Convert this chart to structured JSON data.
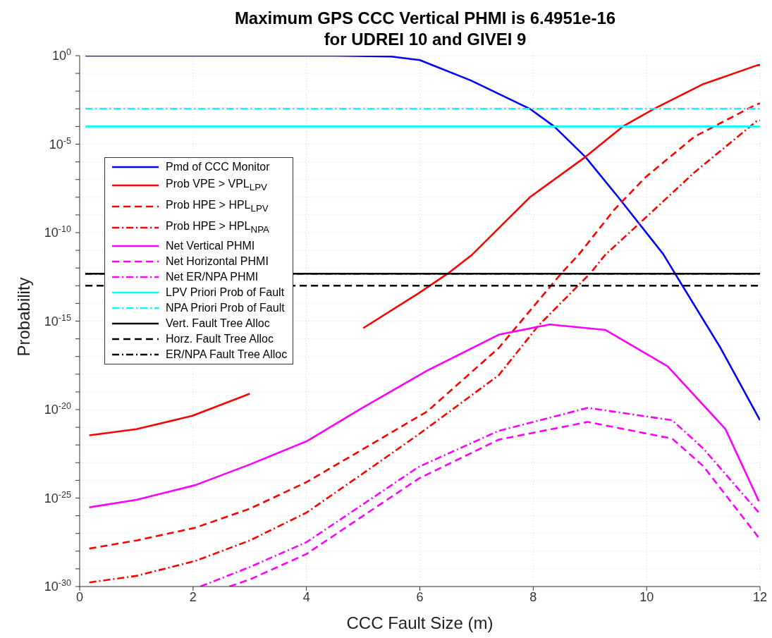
{
  "chart_data": {
    "type": "line",
    "title": "Maximum GPS CCC Vertical PHMI is 6.4951e-16\nfor UDREI 10 and GIVEI 9",
    "xlabel": "CCC Fault Size (m)",
    "ylabel": "Probability",
    "log": "y",
    "grid": true,
    "legend": "top left",
    "marker": "none",
    "xlim": [
      0,
      12
    ],
    "xticks": [
      0,
      2,
      4,
      6,
      8,
      10,
      12
    ],
    "ylim": [
      1e-30,
      1
    ],
    "yticks": [
      {
        "value": 1,
        "label": "10$^{0}$"
      },
      {
        "value": 0.1,
        "label": null
      },
      {
        "value": 0.01,
        "label": null
      },
      {
        "value": 0.001,
        "label": null
      },
      {
        "value": 0.0001,
        "label": null
      },
      {
        "value": 1e-05,
        "label": "10$^{-5}$"
      },
      {
        "value": 1e-06,
        "label": null
      },
      {
        "value": 1e-07,
        "label": null
      },
      {
        "value": 1e-08,
        "label": null
      },
      {
        "value": 1e-09,
        "label": null
      },
      {
        "value": 1e-10,
        "label": "10$^{-10}$"
      },
      {
        "value": 1e-11,
        "label": null
      },
      {
        "value": 1e-12,
        "label": null
      },
      {
        "value": 1e-13,
        "label": null
      },
      {
        "value": 1e-14,
        "label": null
      },
      {
        "value": 1e-15,
        "label": "10$^{-15}$"
      },
      {
        "value": 1e-16,
        "label": null
      },
      {
        "value": 1e-17,
        "label": null
      },
      {
        "value": 1e-18,
        "label": null
      },
      {
        "value": 1e-19,
        "label": null
      },
      {
        "value": 1e-20,
        "label": "10$^{-20}$"
      },
      {
        "value": 1e-21,
        "label": null
      },
      {
        "value": 1e-22,
        "label": null
      },
      {
        "value": 1e-23,
        "label": null
      },
      {
        "value": 1e-24,
        "label": null
      },
      {
        "value": 1e-25,
        "label": "10$^{-25}$"
      },
      {
        "value": 1e-26,
        "label": null
      },
      {
        "value": 1e-27,
        "label": null
      },
      {
        "value": 1e-28,
        "label": null
      },
      {
        "value": 1e-29,
        "label": null
      },
      {
        "value": 1e-30,
        "label": "10$^{-30}$"
      }
    ],
    "series": [
      {
        "name": "Pmd of CCC Monitor",
        "color": "#0000ff",
        "line_style": "solid",
        "x": [
          0.1,
          4.5,
          5.5,
          6,
          6.9,
          7.94,
          8.37,
          8.92,
          9.5,
          10.29,
          10.64,
          11.3,
          12
        ],
        "values": [
          1,
          1,
          0.89,
          0.56,
          0.04,
          0.001,
          0.0001,
          1.9e-06,
          1e-08,
          6.3e-12,
          9.1e-14,
          3.2e-17,
          2.5e-21
        ]
      },
      {
        "name": "Prob VPE > VPL$_{LPV}$",
        "color": "#ff0000",
        "line_style": "solid",
        "x": [
          0.17,
          1,
          1.98,
          3,
          4.09,
          5,
          5.98,
          6.49,
          6.92,
          7.94,
          8.92,
          9.58,
          10.13,
          11,
          11.94,
          12
        ],
        "values": [
          3.5e-22,
          7.9e-22,
          4.4e-21,
          7.9e-20,
          null,
          4e-16,
          3.8e-14,
          4.8e-13,
          5.6e-12,
          1e-08,
          1.9e-06,
          0.0001,
          0.001,
          0.025,
          0.28,
          0.3
        ]
      },
      {
        "name": "Prob HPE > HPL$_{LPV}$",
        "color": "#ff0000",
        "line_style": "dashed",
        "x": [
          0.17,
          1,
          2.04,
          3,
          4,
          4.88,
          6.13,
          7.39,
          8.49,
          8.8,
          9.43,
          9.98,
          10.84,
          11.94,
          12
        ],
        "values": [
          1.4e-28,
          4e-28,
          2.1e-27,
          2.5e-26,
          7.9e-25,
          3.5e-23,
          7.9e-21,
          3e-17,
          4.8e-13,
          5.6e-12,
          2e-09,
          1.35e-07,
          2.6e-05,
          0.0018,
          0.002
        ]
      },
      {
        "name": "Prob HPE > HPL$_{NPA}$",
        "color": "#ff0000",
        "line_style": "dashdot",
        "x": [
          0.17,
          1,
          2.04,
          3,
          4,
          5,
          5.98,
          7.39,
          8.09,
          9,
          9.27,
          9.9,
          10.84,
          11.94,
          12
        ],
        "values": [
          1.7e-30,
          4e-30,
          2.8e-29,
          4e-28,
          1.5e-26,
          2.5e-24,
          4e-22,
          8.7e-19,
          5.5e-16,
          4.8e-13,
          5.6e-12,
          4e-10,
          2.5e-07,
          0.0002,
          0.00022
        ]
      },
      {
        "name": "Net Vertical PHMI",
        "color": "#ff00ff",
        "line_style": "solid",
        "x": [
          0.17,
          1,
          2.04,
          3,
          4,
          4.88,
          6.13,
          7.39,
          8.29,
          9.27,
          10.37,
          11.39,
          11.98
        ],
        "values": [
          3e-26,
          7.9e-26,
          5.4e-25,
          7.9e-24,
          1.6e-22,
          7.9e-21,
          1.6e-18,
          1.7e-16,
          6.5e-16,
          3.2e-16,
          2.8e-18,
          7.9e-22,
          6.6e-26
        ]
      },
      {
        "name": "Net Horizontal PHMI",
        "color": "#ff00ff",
        "line_style": "dashed",
        "x": [
          2.64,
          3,
          4,
          5,
          5.98,
          7.39,
          8.96,
          10.45,
          11,
          11.98
        ],
        "values": [
          1e-30,
          2.5e-30,
          6.9e-29,
          1e-26,
          1.26e-24,
          2e-22,
          2e-21,
          2.3e-22,
          6.3e-24,
          5.6e-28
        ]
      },
      {
        "name": "Net ER/NPA PHMI",
        "color": "#ff00ff",
        "line_style": "dashdot",
        "x": [
          2.13,
          3,
          4,
          5,
          5.98,
          7.39,
          8.96,
          10.45,
          11,
          11.98
        ],
        "values": [
          1e-30,
          1.26e-29,
          3.2e-28,
          4.5e-26,
          5.8e-24,
          6.3e-22,
          1.26e-20,
          2.5e-21,
          6.3e-23,
          1.5e-26
        ]
      },
      {
        "name": "LPV Priori Prob of Fault",
        "color": "#00ffff",
        "line_style": "solid",
        "x": [
          0.1,
          12
        ],
        "values": [
          0.0001,
          0.0001
        ]
      },
      {
        "name": "NPA Priori Prob of Fault",
        "color": "#00ffff",
        "line_style": "dashdot",
        "x": [
          0.1,
          12
        ],
        "values": [
          0.001,
          0.001
        ]
      },
      {
        "name": "Vert. Fault Tree Alloc",
        "color": "#000000",
        "line_style": "solid",
        "x": [
          0.1,
          12
        ],
        "values": [
          4.8e-13,
          4.8e-13
        ]
      },
      {
        "name": "Horz. Fault Tree Alloc",
        "color": "#000000",
        "line_style": "dashed",
        "x": [
          0.1,
          12
        ],
        "values": [
          1e-13,
          1e-13
        ]
      },
      {
        "name": "ER/NPA Fault Tree Alloc",
        "color": "#000000",
        "line_style": "dashdot",
        "x": [
          0.1,
          12
        ],
        "values": [
          4.8e-13,
          4.8e-13
        ]
      }
    ]
  }
}
